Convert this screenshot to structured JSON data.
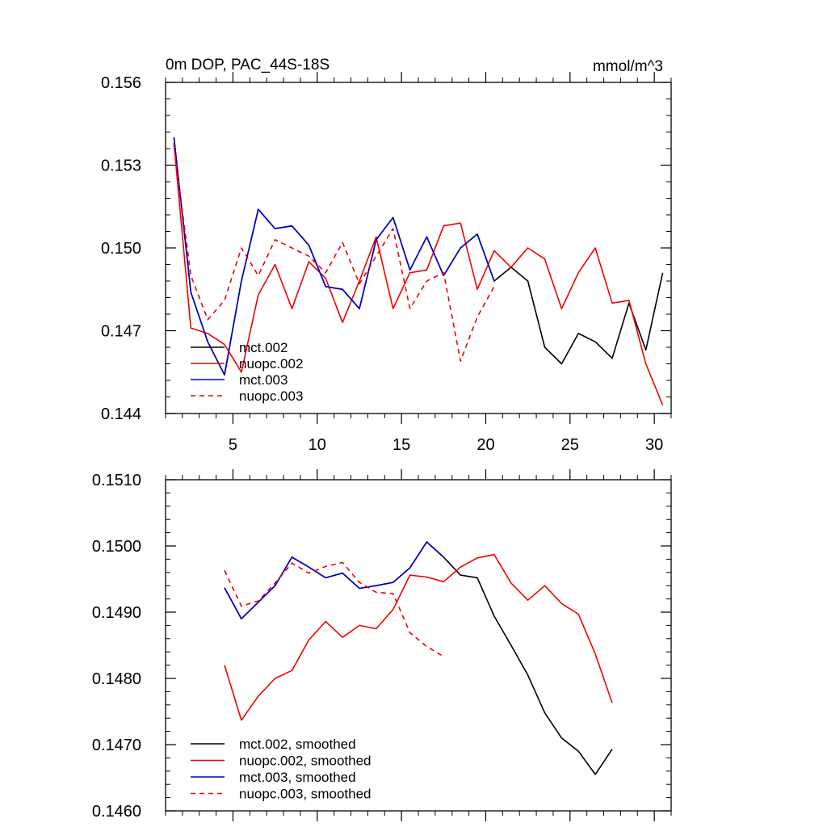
{
  "colors": {
    "mct002": "#000000",
    "nuopc002": "#ee0000",
    "mct003": "#0000cc",
    "nuopc003": "#ee0000"
  },
  "chart_data": [
    {
      "type": "line",
      "title": "0m DOP, PAC_44S-18S",
      "units": "mmol/m^3",
      "xlim": [
        1,
        31
      ],
      "ylim": [
        0.144,
        0.156
      ],
      "yticks": [
        0.144,
        0.147,
        0.15,
        0.153,
        0.156
      ],
      "ytick_labels": [
        "0.144",
        "0.147",
        "0.150",
        "0.153",
        "0.156"
      ],
      "xticks": [
        5,
        10,
        15,
        20,
        25,
        30
      ],
      "xtick_labels": [
        "5",
        "10",
        "15",
        "20",
        "25",
        "30"
      ],
      "legend_location": "lower-left",
      "series": [
        {
          "key": "mct002",
          "name": "mct.002",
          "dashed": false,
          "x": [
            1.5,
            2.5,
            3.5,
            4.5,
            5.5,
            6.5,
            7.5,
            8.5,
            9.5,
            10.5,
            11.5,
            12.5,
            13.5,
            14.5,
            15.5,
            16.5,
            17.5,
            18.5,
            19.5,
            20.5,
            21.5,
            22.5,
            23.5,
            24.5,
            25.5,
            26.5,
            27.5,
            28.5,
            29.5,
            30.5
          ],
          "values": [
            0.154,
            0.1484,
            0.1466,
            0.1454,
            0.1488,
            0.1514,
            0.1507,
            0.1508,
            0.1501,
            0.1486,
            0.1485,
            0.1478,
            0.1503,
            0.1511,
            0.1492,
            0.1504,
            0.149,
            0.15,
            0.1505,
            0.1488,
            0.1493,
            0.1488,
            0.1464,
            0.1458,
            0.1469,
            0.1466,
            0.146,
            0.148,
            0.1463,
            0.1491
          ]
        },
        {
          "key": "nuopc002",
          "name": "nuopc.002",
          "dashed": false,
          "x": [
            1.5,
            2.5,
            3.5,
            4.5,
            5.5,
            6.5,
            7.5,
            8.5,
            9.5,
            10.5,
            11.5,
            12.5,
            13.5,
            14.5,
            15.5,
            16.5,
            17.5,
            18.5,
            19.5,
            20.5,
            21.5,
            22.5,
            23.5,
            24.5,
            25.5,
            26.5,
            27.5,
            28.5,
            29.5,
            30.5
          ],
          "values": [
            0.1538,
            0.1471,
            0.1469,
            0.1465,
            0.1455,
            0.1483,
            0.1494,
            0.1478,
            0.1495,
            0.1489,
            0.1473,
            0.1488,
            0.1504,
            0.1478,
            0.1491,
            0.1492,
            0.1508,
            0.1509,
            0.1485,
            0.1499,
            0.1493,
            0.15,
            0.1496,
            0.1478,
            0.1491,
            0.15,
            0.148,
            0.1481,
            0.1458,
            0.1443
          ]
        },
        {
          "key": "mct003",
          "name": "mct.003",
          "dashed": false,
          "x": [
            1.5,
            2.5,
            3.5,
            4.5,
            5.5,
            6.5,
            7.5,
            8.5,
            9.5,
            10.5,
            11.5,
            12.5,
            13.5,
            14.5,
            15.5,
            16.5,
            17.5,
            18.5,
            19.5,
            20.5
          ],
          "values": [
            0.154,
            0.1484,
            0.1466,
            0.1454,
            0.1488,
            0.1514,
            0.1507,
            0.1508,
            0.1501,
            0.1486,
            0.1485,
            0.1478,
            0.1503,
            0.1511,
            0.1492,
            0.1504,
            0.149,
            0.15,
            0.1505,
            0.1488
          ]
        },
        {
          "key": "nuopc003",
          "name": "nuopc.003",
          "dashed": true,
          "x": [
            1.5,
            2.5,
            3.5,
            4.5,
            5.5,
            6.5,
            7.5,
            8.5,
            9.5,
            10.5,
            11.5,
            12.5,
            13.5,
            14.5,
            15.5,
            16.5,
            17.5,
            18.5,
            19.5,
            20.5
          ],
          "values": [
            0.1537,
            0.149,
            0.1474,
            0.1481,
            0.15,
            0.149,
            0.1503,
            0.15,
            0.1497,
            0.1491,
            0.1502,
            0.1487,
            0.1497,
            0.1507,
            0.1478,
            0.1488,
            0.1491,
            0.1459,
            0.1475,
            0.1486
          ]
        }
      ]
    },
    {
      "type": "line",
      "title": "",
      "xlim": [
        1,
        31
      ],
      "ylim": [
        0.146,
        0.151
      ],
      "yticks": [
        0.146,
        0.147,
        0.148,
        0.149,
        0.15,
        0.151
      ],
      "ytick_labels": [
        "0.1460",
        "0.1470",
        "0.1480",
        "0.1490",
        "0.1500",
        "0.1510"
      ],
      "xticks": [
        5,
        10,
        15,
        20,
        25,
        30
      ],
      "xtick_labels": [],
      "legend_location": "lower-left",
      "series": [
        {
          "key": "mct002",
          "name": "mct.002, smoothed",
          "dashed": false,
          "x": [
            4.5,
            5.5,
            6.5,
            7.5,
            8.5,
            9.5,
            10.5,
            11.5,
            12.5,
            13.5,
            14.5,
            15.5,
            16.5,
            17.5,
            18.5,
            19.5,
            20.5,
            21.5,
            22.5,
            23.5,
            24.5,
            25.5,
            26.5,
            27.5
          ],
          "values": [
            0.14937,
            0.1489,
            0.14915,
            0.1494,
            0.14983,
            0.14968,
            0.14952,
            0.14959,
            0.14936,
            0.1494,
            0.14945,
            0.14967,
            0.15006,
            0.14983,
            0.14956,
            0.14952,
            0.14894,
            0.1485,
            0.14805,
            0.14748,
            0.1471,
            0.1469,
            0.14655,
            0.14693
          ]
        },
        {
          "key": "nuopc002",
          "name": "nuopc.002, smoothed",
          "dashed": false,
          "x": [
            4.5,
            5.5,
            6.5,
            7.5,
            8.5,
            9.5,
            10.5,
            11.5,
            12.5,
            13.5,
            14.5,
            15.5,
            16.5,
            17.5,
            18.5,
            19.5,
            20.5,
            21.5,
            22.5,
            23.5,
            24.5,
            25.5,
            26.5,
            27.5
          ],
          "values": [
            0.1482,
            0.14737,
            0.14773,
            0.148,
            0.14812,
            0.14858,
            0.14886,
            0.14862,
            0.1488,
            0.14875,
            0.14904,
            0.14956,
            0.14953,
            0.14946,
            0.14968,
            0.14982,
            0.14987,
            0.14944,
            0.14918,
            0.1494,
            0.14913,
            0.14897,
            0.14837,
            0.14763
          ]
        },
        {
          "key": "mct003",
          "name": "mct.003, smoothed",
          "dashed": false,
          "x": [
            4.5,
            5.5,
            6.5,
            7.5,
            8.5,
            9.5,
            10.5,
            11.5,
            12.5,
            13.5,
            14.5,
            15.5,
            16.5,
            17.5
          ],
          "values": [
            0.14937,
            0.1489,
            0.14915,
            0.1494,
            0.14983,
            0.14968,
            0.14952,
            0.14959,
            0.14936,
            0.1494,
            0.14945,
            0.14967,
            0.15006,
            0.14983
          ]
        },
        {
          "key": "nuopc003",
          "name": "nuopc.003, smoothed",
          "dashed": true,
          "x": [
            4.5,
            5.5,
            6.5,
            7.5,
            8.5,
            9.5,
            10.5,
            11.5,
            12.5,
            13.5,
            14.5,
            15.5,
            16.5,
            17.5
          ],
          "values": [
            0.14963,
            0.14909,
            0.14917,
            0.14944,
            0.14974,
            0.14959,
            0.14969,
            0.14975,
            0.14945,
            0.1493,
            0.14928,
            0.14869,
            0.14848,
            0.14833
          ]
        }
      ]
    }
  ]
}
